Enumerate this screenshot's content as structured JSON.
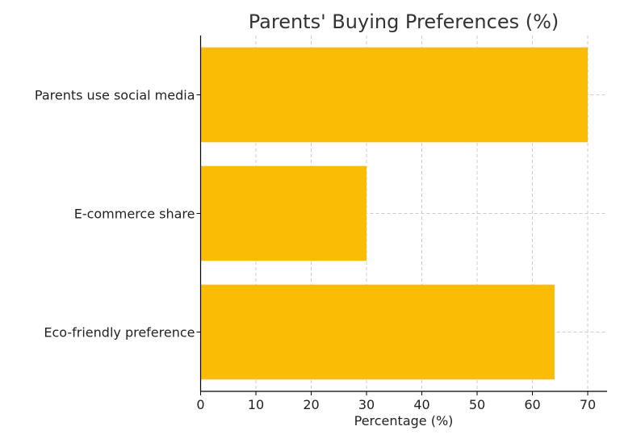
{
  "chart_data": {
    "type": "bar",
    "orientation": "horizontal",
    "title": "Parents' Buying Preferences (%)",
    "xlabel": "Percentage (%)",
    "ylabel": "",
    "categories": [
      "Parents use social media",
      "E-commerce share",
      "Eco-friendly preference"
    ],
    "values": [
      70,
      30,
      64
    ],
    "xlim": [
      0,
      73.5
    ],
    "xticks": [
      0,
      10,
      20,
      30,
      40,
      50,
      60,
      70
    ],
    "grid": true,
    "bar_color": "#FBBC05"
  }
}
